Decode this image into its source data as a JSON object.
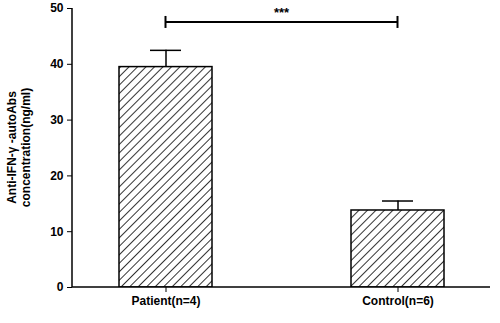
{
  "chart_data": {
    "type": "bar",
    "y_label": "Anti-IFN-γ -autoAbs\nconcentration(ng/ml)",
    "categories": [
      "Patient(n=4)",
      "Control(n=6)"
    ],
    "values": [
      39.5,
      13.8
    ],
    "errors": [
      3.0,
      1.7
    ],
    "color": "#000000",
    "ylim": [
      0,
      50
    ],
    "yticks": [
      0,
      10,
      20,
      30,
      40,
      50
    ],
    "grid": false,
    "annotation": "***"
  }
}
